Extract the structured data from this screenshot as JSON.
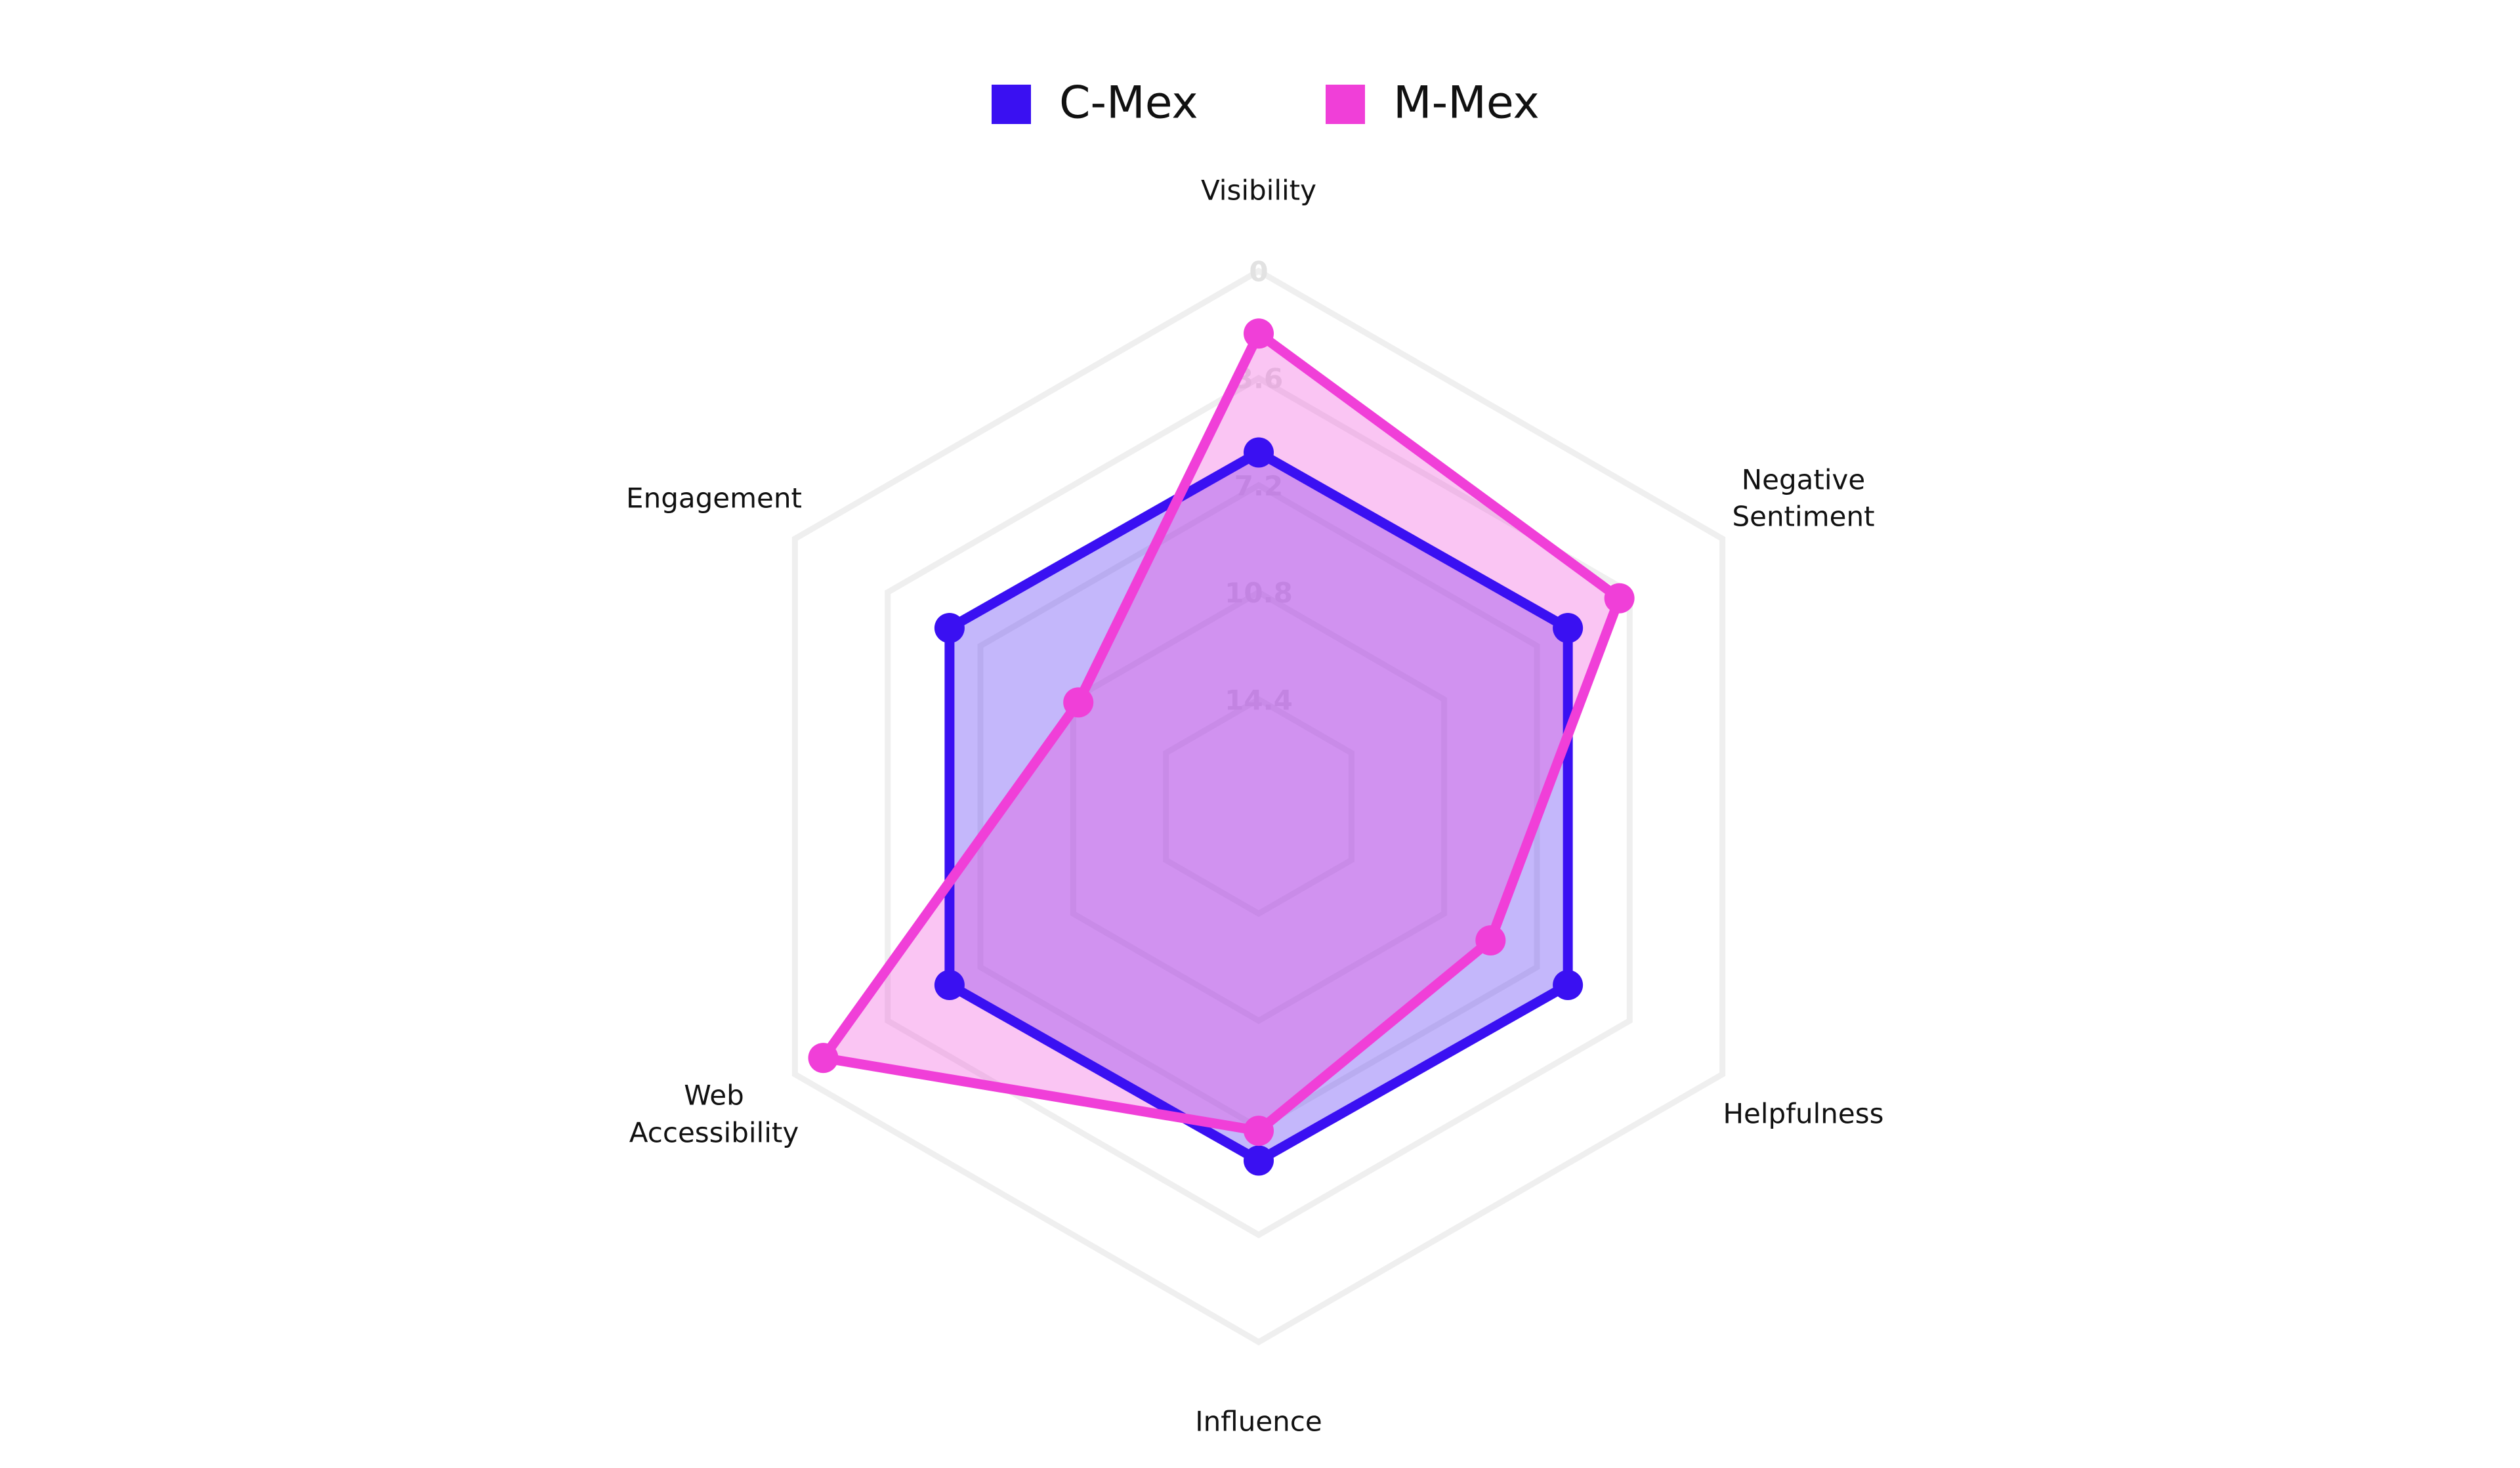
{
  "chart_data": {
    "type": "radar",
    "categories": [
      "Visibility",
      "Negative Sentiment",
      "Helpfulness",
      "Influence",
      "Web Accessibility",
      "Engagement"
    ],
    "series": [
      {
        "name": "C-Mex",
        "color": "#3a10f2",
        "values": [
          6.1,
          6.0,
          6.0,
          6.1,
          6.0,
          6.0
        ]
      },
      {
        "name": "M-Mex",
        "color": "#f03fd8",
        "values": [
          2.1,
          4.0,
          9.0,
          7.1,
          1.1,
          11.0
        ]
      }
    ],
    "rlim": [
      18,
      0
    ],
    "rticks": [
      0,
      3.6,
      7.2,
      10.8,
      14.4
    ],
    "grid": true,
    "legend": "top"
  }
}
